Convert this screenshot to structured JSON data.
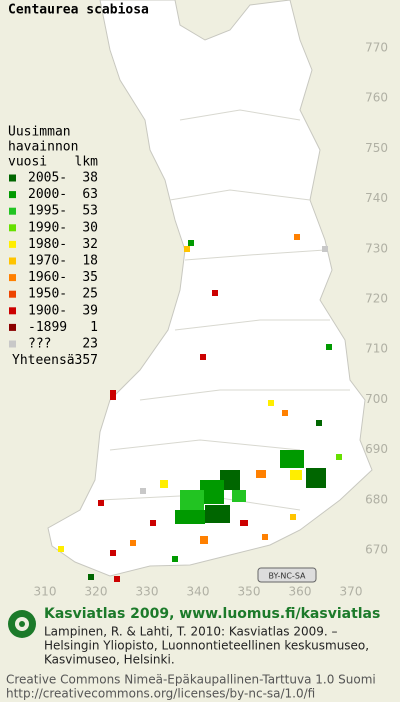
{
  "title": "Centaurea scabiosa",
  "legend": {
    "heading": [
      "Uusimman",
      "havainnon"
    ],
    "col_headers": [
      "vuosi",
      "lkm"
    ],
    "rows": [
      {
        "label": "2005-",
        "count": 38,
        "color": "#006600"
      },
      {
        "label": "2000-",
        "count": 63,
        "color": "#009a00"
      },
      {
        "label": "1995-",
        "count": 53,
        "color": "#22c422"
      },
      {
        "label": "1990-",
        "count": 30,
        "color": "#66e000"
      },
      {
        "label": "1980-",
        "count": 32,
        "color": "#ffee00"
      },
      {
        "label": "1970-",
        "count": 18,
        "color": "#ffc400"
      },
      {
        "label": "1960-",
        "count": 35,
        "color": "#ff8000"
      },
      {
        "label": "1950-",
        "count": 25,
        "color": "#ee4400"
      },
      {
        "label": "1900-",
        "count": 39,
        "color": "#cc0000"
      },
      {
        "label": "-1899",
        "count": 1,
        "color": "#8b0000"
      },
      {
        "label": "???",
        "count": 23,
        "color": "#c8c8c8"
      }
    ],
    "total_label": "Yhteensä",
    "total": 357
  },
  "grid": {
    "x_labels": [
      310,
      320,
      330,
      340,
      350,
      360,
      370
    ],
    "y_labels": [
      770,
      760,
      750,
      740,
      730,
      720,
      710,
      700,
      690,
      680,
      670
    ]
  },
  "badge": "BY-NC-SA",
  "footer": {
    "brand": "Kasviatlas 2009, www.luomus.fi/kasviatlas",
    "citation": [
      "Lampinen, R. & Lahti, T. 2010: Kasviatlas 2009. –",
      "Helsingin Yliopisto, Luonnontieteellinen keskusmuseo,",
      "Kasvimuseo, Helsinki."
    ],
    "license": [
      "Creative Commons Nimeä-Epäkaupallinen-Tarttuva 1.0 Suomi",
      "http://creativecommons.org/licenses/by-nc-sa/1.0/fi"
    ]
  }
}
